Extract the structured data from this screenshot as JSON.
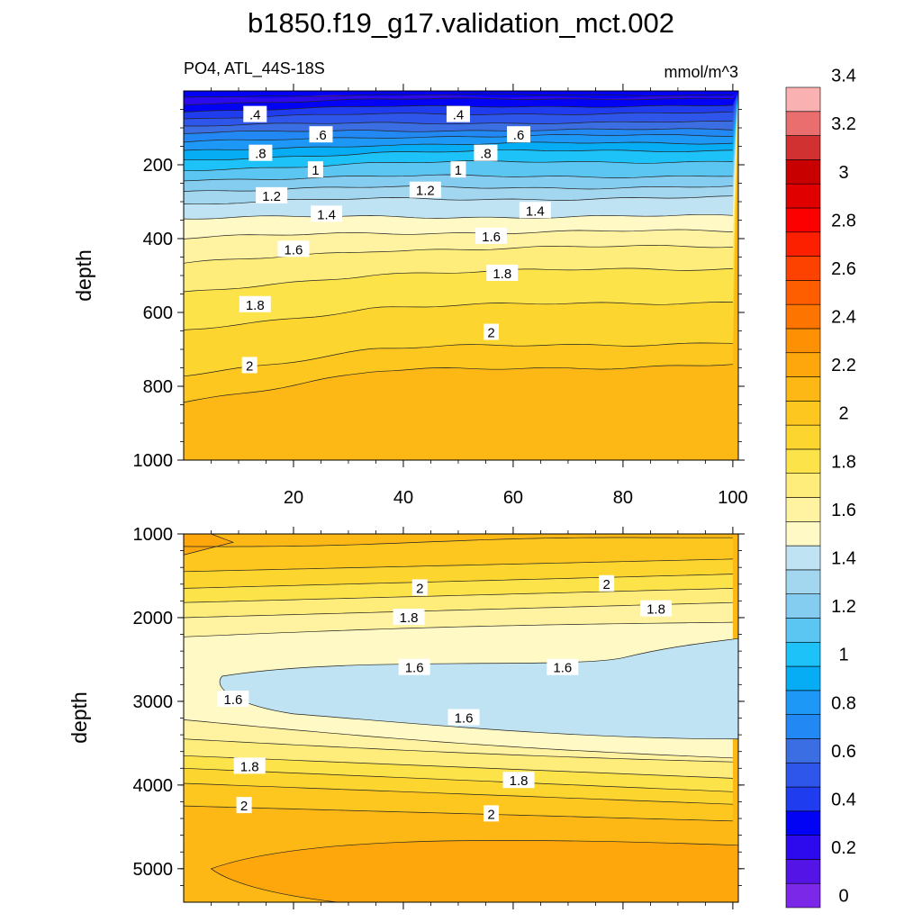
{
  "title": "b1850.f19_g17.validation_mct.002",
  "subtitle_left": "PO4, ATL_44S-18S",
  "subtitle_right": "mmol/m^3",
  "colors": {
    "levels": [
      "#7b28e8",
      "#5414e6",
      "#2d0aee",
      "#0202f5",
      "#1f3cef",
      "#2f56ea",
      "#3b6ee2",
      "#2288f4",
      "#1e98f7",
      "#06adf4",
      "#1dc2f8",
      "#5cc6f3",
      "#85cdf0",
      "#a3d6ef",
      "#bfe3f2",
      "#fff9c5",
      "#fff2a0",
      "#feec7b",
      "#fde34a",
      "#fcd52f",
      "#fdc71f",
      "#feb815",
      "#fea70c",
      "#fd9103",
      "#fe7400",
      "#fe5d00",
      "#fd4200",
      "#fc2000",
      "#fc0000",
      "#e00000",
      "#c80000",
      "#d23131",
      "#ea6e6e",
      "#fab1b1"
    ]
  },
  "colorbar": {
    "labels": [
      "0",
      "0.2",
      "0.4",
      "0.6",
      "0.8",
      "1",
      "1.2",
      "1.4",
      "1.6",
      "1.8",
      "2",
      "2.2",
      "2.4",
      "2.6",
      "2.8",
      "3",
      "3.2",
      "3.4"
    ]
  },
  "chart_data": [
    {
      "type": "contour",
      "panel": "upper",
      "variable": "PO4",
      "region": "ATL_44S-18S",
      "units": "mmol/m^3",
      "ylabel": "depth",
      "xlabel": "",
      "xlim": [
        0,
        100
      ],
      "ylim": [
        1000,
        0
      ],
      "x_ticks": [
        "20",
        "40",
        "60",
        "80",
        "100"
      ],
      "y_ticks": [
        "200",
        "400",
        "600",
        "800",
        "1000"
      ],
      "contour_interval": 0.1,
      "isoline_depths": [
        {
          "level": 0.2,
          "depth_at_x0": 15,
          "depth_at_x100": 10
        },
        {
          "level": 0.3,
          "depth_at_x0": 35,
          "depth_at_x100": 20
        },
        {
          "level": 0.4,
          "depth_at_x0": 55,
          "depth_at_x100": 40
        },
        {
          "level": 0.5,
          "depth_at_x0": 75,
          "depth_at_x100": 60
        },
        {
          "level": 0.6,
          "depth_at_x0": 95,
          "depth_at_x100": 85
        },
        {
          "level": 0.7,
          "depth_at_x0": 115,
          "depth_at_x100": 105
        },
        {
          "level": 0.8,
          "depth_at_x0": 140,
          "depth_at_x100": 120
        },
        {
          "level": 0.9,
          "depth_at_x0": 165,
          "depth_at_x100": 140
        },
        {
          "level": 1.0,
          "depth_at_x0": 190,
          "depth_at_x100": 160
        },
        {
          "level": 1.1,
          "depth_at_x0": 215,
          "depth_at_x100": 190
        },
        {
          "level": 1.2,
          "depth_at_x0": 240,
          "depth_at_x100": 230
        },
        {
          "level": 1.3,
          "depth_at_x0": 270,
          "depth_at_x100": 260
        },
        {
          "level": 1.4,
          "depth_at_x0": 305,
          "depth_at_x100": 290
        },
        {
          "level": 1.5,
          "depth_at_x0": 345,
          "depth_at_x100": 340
        },
        {
          "level": 1.6,
          "depth_at_x0": 400,
          "depth_at_x100": 380
        },
        {
          "level": 1.7,
          "depth_at_x0": 470,
          "depth_at_x100": 420
        },
        {
          "level": 1.8,
          "depth_at_x0": 550,
          "depth_at_x100": 480
        },
        {
          "level": 1.9,
          "depth_at_x0": 650,
          "depth_at_x100": 570
        },
        {
          "level": 2.0,
          "depth_at_x0": 770,
          "depth_at_x100": 680
        },
        {
          "level": 2.1,
          "depth_at_x0": 840,
          "depth_at_x100": 740
        }
      ],
      "labels": [
        {
          "text": ".4",
          "x": 13,
          "depth": 65
        },
        {
          "text": ".4",
          "x": 50,
          "depth": 65
        },
        {
          "text": ".6",
          "x": 25,
          "depth": 120
        },
        {
          "text": ".6",
          "x": 61,
          "depth": 120
        },
        {
          "text": ".8",
          "x": 14,
          "depth": 170
        },
        {
          "text": ".8",
          "x": 55,
          "depth": 170
        },
        {
          "text": "1",
          "x": 24,
          "depth": 215
        },
        {
          "text": "1",
          "x": 50,
          "depth": 215
        },
        {
          "text": "1.2",
          "x": 16,
          "depth": 285
        },
        {
          "text": "1.2",
          "x": 44,
          "depth": 270
        },
        {
          "text": "1.4",
          "x": 26,
          "depth": 335
        },
        {
          "text": "1.4",
          "x": 64,
          "depth": 325
        },
        {
          "text": "1.6",
          "x": 20,
          "depth": 430
        },
        {
          "text": "1.6",
          "x": 56,
          "depth": 395
        },
        {
          "text": "1.8",
          "x": 13,
          "depth": 580
        },
        {
          "text": "1.8",
          "x": 58,
          "depth": 495
        },
        {
          "text": "2",
          "x": 12,
          "depth": 745
        },
        {
          "text": "2",
          "x": 56,
          "depth": 655
        }
      ]
    },
    {
      "type": "contour",
      "panel": "lower",
      "variable": "PO4",
      "region": "ATL_44S-18S",
      "units": "mmol/m^3",
      "ylabel": "depth",
      "xlabel": "",
      "xlim": [
        0,
        100
      ],
      "ylim": [
        5400,
        1000
      ],
      "y_ticks": [
        "1000",
        "2000",
        "3000",
        "4000",
        "5000"
      ],
      "contour_interval": 0.1,
      "labels": [
        {
          "text": "2",
          "x": 43,
          "depth": 1650
        },
        {
          "text": "2",
          "x": 77,
          "depth": 1600
        },
        {
          "text": "1.8",
          "x": 41,
          "depth": 2000
        },
        {
          "text": "1.8",
          "x": 86,
          "depth": 1900
        },
        {
          "text": "1.6",
          "x": 42,
          "depth": 2600
        },
        {
          "text": "1.6",
          "x": 69,
          "depth": 2600
        },
        {
          "text": "1.6",
          "x": 9,
          "depth": 2980
        },
        {
          "text": "1.6",
          "x": 51,
          "depth": 3200
        },
        {
          "text": "1.8",
          "x": 12,
          "depth": 3780
        },
        {
          "text": "1.8",
          "x": 61,
          "depth": 3950
        },
        {
          "text": "2",
          "x": 11,
          "depth": 4250
        },
        {
          "text": "2",
          "x": 56,
          "depth": 4350
        }
      ]
    }
  ]
}
